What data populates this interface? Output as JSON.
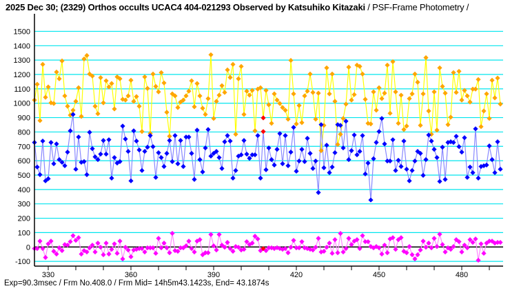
{
  "title": {
    "main": "2025 Dec 30; (2329) Orthos occults UCAC4 404-021293 Observed by Katsuhiko Kitazaki",
    "sub": " / PSF-Frame Photometry /"
  },
  "footer": "Exp=90.3msec / Frm No.408.0 / Frm Mid= 14h5m43.1423s,  End= 43.1874s",
  "colors": {
    "grid": "#00e5ee",
    "zero_line": "#000000",
    "highlight": "#ff0000"
  },
  "chart_data": {
    "type": "line",
    "title": "2025 Dec 30; (2329) Orthos occults UCAC4 404-021293 Observed by Katsuhiko Kitazaki / PSF-Frame Photometry /",
    "xlabel": "",
    "ylabel": "",
    "xlim": [
      325,
      495
    ],
    "ylim": [
      -133,
      1622
    ],
    "x_start": 325,
    "x_step": 1,
    "xticks": [
      330,
      360,
      390,
      420,
      450,
      480
    ],
    "xminor_step": 10,
    "yticks": [
      -100,
      0,
      100,
      200,
      300,
      400,
      500,
      600,
      700,
      800,
      900,
      1000,
      1100,
      1200,
      1300,
      1400,
      1500
    ],
    "grid": true,
    "highlight_frame": 408,
    "series": [
      {
        "name": "target-star",
        "marker_color": "#ffa500",
        "line_color": "#ffff00",
        "values": [
          1022,
          1132,
          879,
          1270,
          1041,
          1113,
          1003,
          998,
          1217,
          1170,
          1294,
          1051,
          979,
          917,
          951,
          1013,
          1108,
          908,
          1308,
          1332,
          1203,
          1189,
          979,
          927,
          1178,
          1003,
          1156,
          1113,
          1137,
          960,
          1183,
          1170,
          1027,
          1022,
          1051,
          1160,
          1013,
          1046,
          979,
          803,
          1183,
          1103,
          790,
          1203,
          1117,
          1079,
          1213,
          1141,
          937,
          770,
          1065,
          1051,
          970,
          1008,
          1022,
          1051,
          1084,
          1156,
          975,
          1137,
          1051,
          965,
          922,
          1032,
          1337,
          894,
          1013,
          1056,
          1122,
          1075,
          1232,
          1179,
          1270,
          784,
          1170,
          1256,
          922,
          1084,
          1056,
          1089,
          808,
          1098,
          1108,
          898,
          1089,
          989,
          860,
          1065,
          1022,
          998,
          970,
          951,
          889,
          1298,
          1065,
          856,
          984,
          865,
          1051,
          1084,
          1203,
          1075,
          889,
          1070,
          670,
          846,
          1246,
          1065,
          1203,
          1013,
          713,
          784,
          894,
          994,
          1251,
          1022,
          1060,
          1265,
          1256,
          1203,
          1027,
          860,
          856,
          1079,
          951,
          1108,
          1032,
          1070,
          1265,
          930,
          1289,
          1079,
          860,
          1056,
          817,
          841,
          1032,
          1065,
          1203,
          1146,
          846,
          1065,
          1317,
          946,
          784,
          1079,
          813,
          1246,
          1117,
          1070,
          851,
          903,
          1213,
          1075,
          1222,
          1022,
          1089,
          1051,
          1008,
          1098,
          1098,
          1165,
          837,
          946,
          1065,
          894,
          1160,
          1037,
          1175,
          994
        ]
      },
      {
        "name": "comparison-star",
        "marker_color": "#0000ff",
        "line_color": "#8888ff",
        "values": [
          727,
          556,
          503,
          737,
          460,
          475,
          727,
          579,
          717,
          608,
          589,
          565,
          660,
          808,
          922,
          541,
          765,
          589,
          594,
          503,
          798,
          684,
          627,
          608,
          646,
          741,
          646,
          746,
          479,
          622,
          584,
          594,
          841,
          751,
          665,
          460,
          808,
          737,
          675,
          532,
          665,
          694,
          775,
          698,
          484,
          656,
          622,
          560,
          651,
          741,
          594,
          775,
          579,
          741,
          560,
          765,
          765,
          651,
          470,
          813,
          608,
          522,
          689,
          817,
          632,
          651,
          665,
          622,
          546,
          732,
          775,
          737,
          479,
          532,
          632,
          641,
          741,
          646,
          617,
          641,
          641,
          775,
          479,
          803,
          537,
          689,
          608,
          570,
          679,
          789,
          579,
          775,
          565,
          660,
          832,
          527,
          598,
          679,
          594,
          756,
          651,
          546,
          598,
          379,
          851,
          551,
          708,
          517,
          556,
          656,
          851,
          846,
          689,
          875,
          608,
          670,
          779,
          641,
          665,
          775,
          508,
          584,
          327,
          614,
          727,
          803,
          894,
          717,
          598,
          598,
          746,
          532,
          603,
          560,
          737,
          541,
          460,
          532,
          598,
          665,
          651,
          498,
          608,
          779,
          737,
          679,
          622,
          456,
          694,
          470,
          727,
          732,
          727,
          770,
          698,
          660,
          760,
          484,
          556,
          517,
          822,
          479,
          560,
          565,
          570,
          703,
          608,
          517,
          732,
          541
        ]
      },
      {
        "name": "background",
        "marker_color": "#ff00ff",
        "line_color": "#ff88ff",
        "values": [
          -11,
          -11,
          41,
          -11,
          -73,
          22,
          41,
          -30,
          -49,
          -6,
          -25,
          17,
          13,
          37,
          79,
          46,
          65,
          -49,
          -25,
          -35,
          -6,
          13,
          -35,
          27,
          -2,
          -54,
          27,
          -49,
          -16,
          22,
          -44,
          41,
          -83,
          -2,
          -21,
          -68,
          -21,
          -16,
          -11,
          -11,
          -35,
          -6,
          -6,
          -6,
          -44,
          60,
          -6,
          27,
          -6,
          -40,
          95,
          -25,
          -30,
          -6,
          -6,
          8,
          41,
          -11,
          -35,
          41,
          51,
          -54,
          -40,
          -40,
          87,
          8,
          -21,
          87,
          13,
          -2,
          32,
          -11,
          -30,
          3,
          -2,
          -21,
          -16,
          37,
          17,
          27,
          75,
          56,
          -25,
          -11,
          -25,
          -6,
          -6,
          -11,
          -5,
          -11,
          -16,
          -11,
          -40,
          -2,
          46,
          -6,
          -6,
          37,
          -6,
          -11,
          -16,
          -21,
          -2,
          60,
          -35,
          -30,
          -2,
          27,
          -44,
          51,
          -40,
          94,
          -35,
          -11,
          60,
          17,
          41,
          51,
          -11,
          79,
          37,
          37,
          3,
          -6,
          3,
          -6,
          -49,
          13,
          -40,
          56,
          65,
          -16,
          51,
          65,
          -30,
          -40,
          3,
          -54,
          -83,
          -54,
          -21,
          41,
          -2,
          27,
          -6,
          60,
          3,
          89,
          17,
          -35,
          -6,
          -16,
          3,
          51,
          37,
          -35,
          13,
          -6,
          51,
          32,
          56,
          -92,
          22,
          -44,
          27,
          41,
          41,
          27,
          32,
          32
        ]
      }
    ]
  }
}
